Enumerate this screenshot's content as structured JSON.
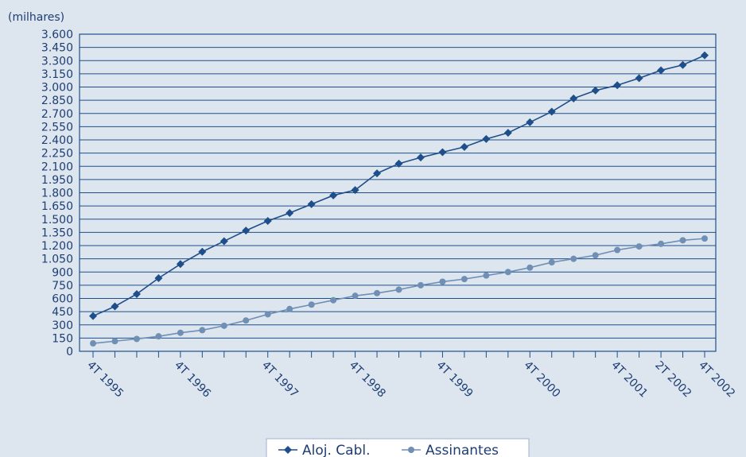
{
  "chart_data": {
    "type": "line",
    "unit_label": "(milhares)",
    "ylim": [
      0,
      3600
    ],
    "ytick_step": 150,
    "grid": true,
    "legend_position": "bottom-center",
    "x_tick_labels": [
      {
        "label": "4T 1995",
        "index": 0
      },
      {
        "label": "4T 1996",
        "index": 4
      },
      {
        "label": "4T 1997",
        "index": 8
      },
      {
        "label": "4T 1998",
        "index": 12
      },
      {
        "label": "4T 1999",
        "index": 16
      },
      {
        "label": "4T 2000",
        "index": 20
      },
      {
        "label": "4T 2001",
        "index": 24
      },
      {
        "label": "2T 2002",
        "index": 26
      },
      {
        "label": "4T 2002",
        "index": 28
      }
    ],
    "x_positions": [
      0,
      1,
      2,
      3,
      4,
      5,
      6,
      7,
      8,
      9,
      10,
      11,
      12,
      13,
      14,
      15,
      16,
      17,
      18,
      19,
      20,
      21,
      22,
      23,
      24,
      25,
      26,
      27,
      28
    ],
    "series": [
      {
        "name": "Aloj. Cabl.",
        "color": "#1f4f8a",
        "marker": "diamond",
        "values": [
          400,
          510,
          650,
          830,
          990,
          1130,
          1250,
          1370,
          1480,
          1570,
          1670,
          1770,
          1830,
          2020,
          2130,
          2200,
          2260,
          2320,
          2410,
          2480,
          2600,
          2720,
          2870,
          2960,
          3020,
          3100,
          3190,
          3250,
          3360
        ]
      },
      {
        "name": "Assinantes",
        "color": "#6f8fb5",
        "marker": "circle",
        "values": [
          90,
          115,
          140,
          170,
          210,
          240,
          290,
          350,
          420,
          480,
          530,
          580,
          630,
          660,
          700,
          750,
          790,
          820,
          860,
          900,
          950,
          1010,
          1050,
          1090,
          1150,
          1190,
          1220,
          1260,
          1280
        ]
      }
    ]
  }
}
